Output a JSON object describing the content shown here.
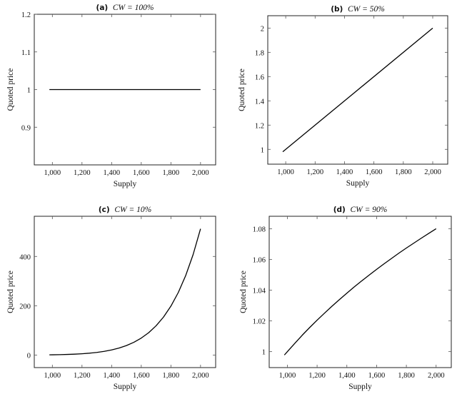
{
  "chart_data": [
    {
      "type": "line",
      "title_prefix": "(a)",
      "title_math": "CW = 100%",
      "xlabel": "Supply",
      "ylabel": "Quoted price",
      "xlim": [
        878,
        2102
      ],
      "ylim": [
        0.8,
        1.2
      ],
      "xticks": [
        1000,
        1200,
        1400,
        1600,
        1800,
        2000
      ],
      "xtick_labels": [
        "1,000",
        "1,200",
        "1,400",
        "1,600",
        "1,800",
        "2,000"
      ],
      "yticks": [
        0.9,
        1,
        1.1,
        1.2
      ],
      "ytick_labels": [
        "0.9",
        "1",
        "1.1",
        "1.2"
      ],
      "grid": false,
      "x": [
        980,
        2000
      ],
      "y": [
        1,
        1
      ]
    },
    {
      "type": "line",
      "title_prefix": "(b)",
      "title_math": "CW = 50%",
      "xlabel": "Supply",
      "ylabel": "Quoted price",
      "xlim": [
        878,
        2102
      ],
      "ylim": [
        0.878,
        2.102
      ],
      "xticks": [
        1000,
        1200,
        1400,
        1600,
        1800,
        2000
      ],
      "xtick_labels": [
        "1,000",
        "1,200",
        "1,400",
        "1,600",
        "1,800",
        "2,000"
      ],
      "yticks": [
        1,
        1.2,
        1.4,
        1.6,
        1.8,
        2
      ],
      "ytick_labels": [
        "1",
        "1.2",
        "1.4",
        "1.6",
        "1.8",
        "2"
      ],
      "grid": false,
      "x": [
        980,
        2000
      ],
      "y": [
        0.98,
        2
      ]
    },
    {
      "type": "line",
      "title_prefix": "(c)",
      "title_math": "CW = 10%",
      "xlabel": "Supply",
      "ylabel": "Quoted price",
      "xlim": [
        878,
        2102
      ],
      "ylim": [
        -51,
        563
      ],
      "xticks": [
        1000,
        1200,
        1400,
        1600,
        1800,
        2000
      ],
      "xtick_labels": [
        "1,000",
        "1,200",
        "1,400",
        "1,600",
        "1,800",
        "2,000"
      ],
      "yticks": [
        0,
        200,
        400
      ],
      "ytick_labels": [
        "0",
        "200",
        "400"
      ],
      "grid": false,
      "x": [
        980,
        1000,
        1050,
        1100,
        1150,
        1200,
        1250,
        1300,
        1350,
        1400,
        1450,
        1500,
        1550,
        1600,
        1650,
        1700,
        1750,
        1800,
        1850,
        1900,
        1950,
        2000
      ],
      "y": [
        0.83,
        1,
        1.55,
        2.36,
        3.52,
        5.16,
        7.45,
        10.6,
        14.89,
        20.66,
        28.33,
        38.44,
        51.64,
        68.72,
        90.65,
        118.59,
        153.94,
        198.36,
        253.83,
        322.69,
        407.67,
        512
      ]
    },
    {
      "type": "line",
      "title_prefix": "(d)",
      "title_math": "CW = 90%",
      "xlabel": "Supply",
      "ylabel": "Quoted price",
      "xlim": [
        878,
        2102
      ],
      "ylim": [
        0.9896,
        1.0882
      ],
      "xticks": [
        1000,
        1200,
        1400,
        1600,
        1800,
        2000
      ],
      "xtick_labels": [
        "1,000",
        "1,200",
        "1,400",
        "1,600",
        "1,800",
        "2,000"
      ],
      "yticks": [
        1,
        1.02,
        1.04,
        1.06,
        1.08
      ],
      "ytick_labels": [
        "1",
        "1.02",
        "1.04",
        "1.06",
        "1.08"
      ],
      "grid": false,
      "x": [
        980,
        1000,
        1050,
        1100,
        1150,
        1200,
        1250,
        1300,
        1350,
        1400,
        1450,
        1500,
        1550,
        1600,
        1650,
        1700,
        1750,
        1800,
        1850,
        1900,
        1950,
        2000
      ],
      "y": [
        0.9978,
        1,
        1.0054,
        1.0107,
        1.0157,
        1.0205,
        1.0251,
        1.0296,
        1.0339,
        1.0381,
        1.0422,
        1.0461,
        1.0499,
        1.0536,
        1.0572,
        1.0607,
        1.0642,
        1.0675,
        1.0707,
        1.0739,
        1.077,
        1.0801
      ]
    }
  ]
}
